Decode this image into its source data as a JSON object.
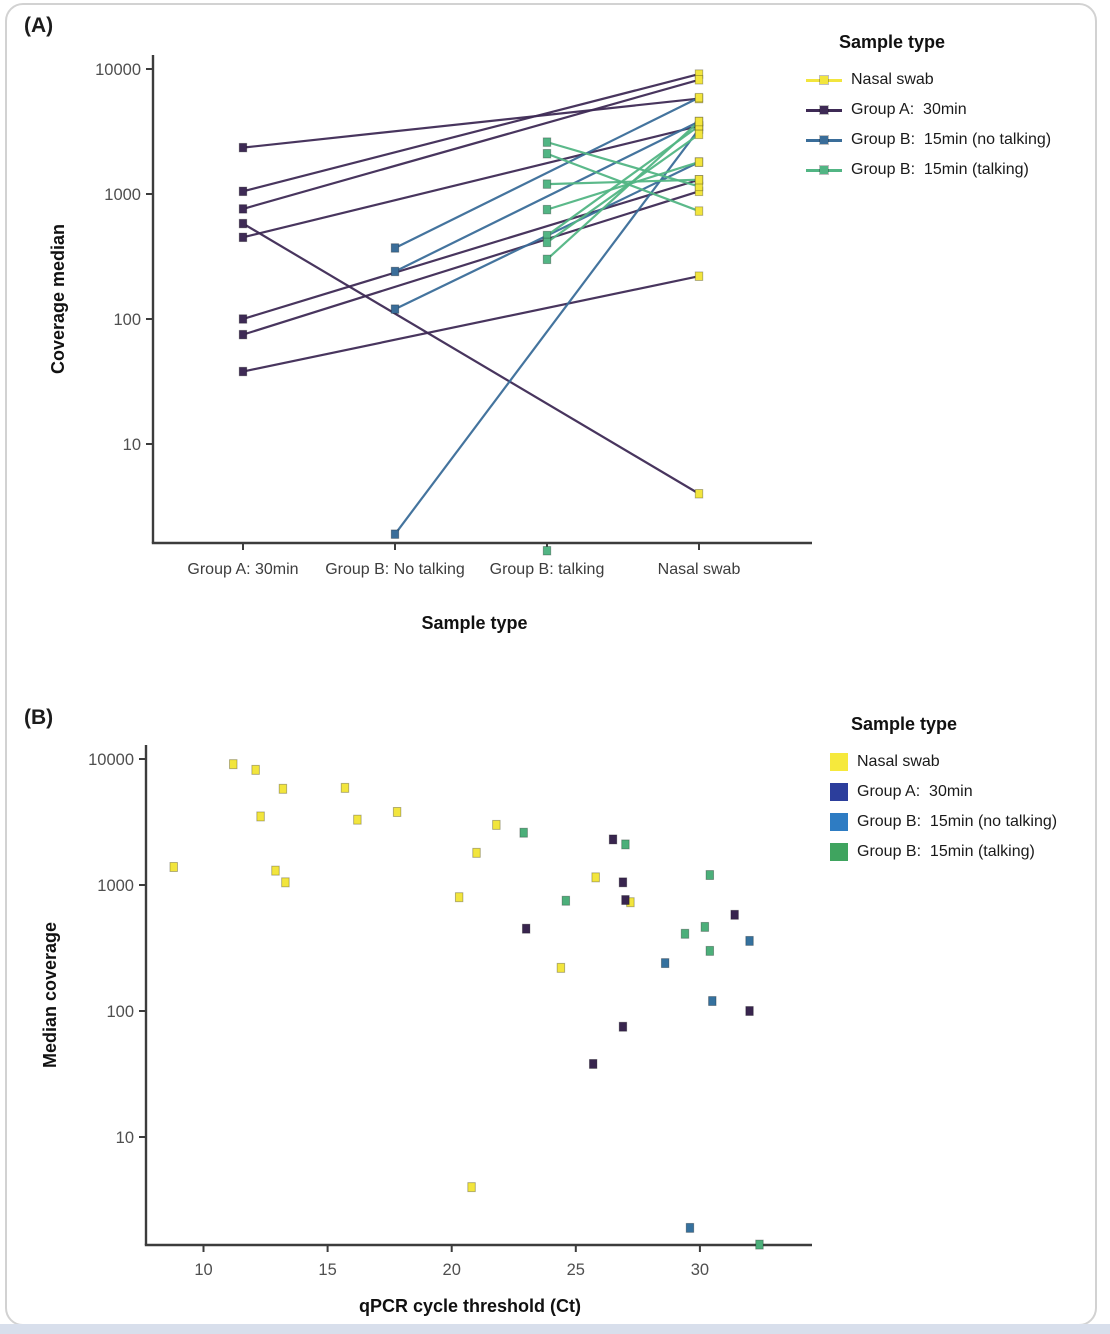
{
  "panelA": {
    "label": "(A)",
    "xlabel": "Sample type",
    "ylabel": "Coverage median",
    "legend_title": "Sample type",
    "legend": [
      {
        "label": "Nasal swab",
        "color": "#f2e53d"
      },
      {
        "label": "Group A:  30min",
        "color": "#3e2a55"
      },
      {
        "label": "Group B:  15min (no talking)",
        "color": "#3a6d99"
      },
      {
        "label": "Group B:  15min (talking)",
        "color": "#52b584"
      }
    ]
  },
  "panelB": {
    "label": "(B)",
    "xlabel": "qPCR cycle threshold (Ct)",
    "ylabel": "Median coverage",
    "legend_title": "Sample type",
    "legend": [
      {
        "label": "Nasal swab",
        "color": "#f6e93c"
      },
      {
        "label": "Group A:  30min",
        "color": "#2c3e9c"
      },
      {
        "label": "Group B:  15min (no talking)",
        "color": "#2e7cc3"
      },
      {
        "label": "Group B:  15min (talking)",
        "color": "#3fa45f"
      }
    ]
  },
  "chart_data": [
    {
      "id": "panelA",
      "type": "line",
      "title": "(A) slope chart: coverage median per sample, mask sample paired to nasal swab",
      "xlabel": "Sample type",
      "ylabel": "Coverage median",
      "x_categories": [
        "Group A: 30min",
        "Group B: No talking",
        "Group B: talking",
        "Nasal swab"
      ],
      "y_scale": "log10",
      "y_ticks": [
        10,
        100,
        1000,
        10000
      ],
      "y_range": [
        1.2,
        13000
      ],
      "grid": false,
      "legend_position": "right",
      "nasal_color": "#f2e53d",
      "series": [
        {
          "name": "Group A: 30min",
          "color": "#3e2a55",
          "category_index": 0,
          "pairs_mask_to_nasal": [
            [
              2350,
              5800
            ],
            [
              1050,
              9100
            ],
            [
              760,
              8200
            ],
            [
              580,
              4
            ],
            [
              450,
              3500
            ],
            [
              100,
              1300
            ],
            [
              75,
              1050
            ],
            [
              38,
              220
            ]
          ]
        },
        {
          "name": "Group B: 15min (no talking)",
          "color": "#3a6d99",
          "category_index": 1,
          "pairs_mask_to_nasal": [
            [
              370,
              5900
            ],
            [
              240,
              3800
            ],
            [
              120,
              1800
            ],
            [
              1.9,
              3300
            ]
          ]
        },
        {
          "name": "Group B: 15min (talking)",
          "color": "#52b584",
          "category_index": 2,
          "pairs_mask_to_nasal": [
            [
              2600,
              1150
            ],
            [
              2100,
              730
            ],
            [
              1200,
              1300
            ],
            [
              750,
              1800
            ],
            [
              465,
              3500
            ],
            [
              410,
              3000
            ],
            [
              300,
              3800
            ],
            [
              1.4,
              null
            ]
          ]
        }
      ]
    },
    {
      "id": "panelB",
      "type": "scatter",
      "title": "(B) median coverage vs qPCR cycle threshold",
      "xlabel": "qPCR cycle threshold (Ct)",
      "ylabel": "Median coverage",
      "x_ticks": [
        10,
        15,
        20,
        25,
        30
      ],
      "x_range": [
        7.7,
        34.5
      ],
      "y_scale": "log10",
      "y_ticks": [
        10,
        100,
        1000,
        10000
      ],
      "y_range": [
        1.2,
        13000
      ],
      "grid": false,
      "legend_position": "right",
      "series": [
        {
          "name": "Nasal swab",
          "color": "#f2e53d",
          "points": [
            [
              8.8,
              1390
            ],
            [
              11.2,
              9100
            ],
            [
              12.1,
              8200
            ],
            [
              12.3,
              3500
            ],
            [
              12.9,
              1300
            ],
            [
              13.2,
              5800
            ],
            [
              13.3,
              1050
            ],
            [
              15.7,
              5900
            ],
            [
              16.2,
              3300
            ],
            [
              17.8,
              3800
            ],
            [
              20.3,
              800
            ],
            [
              20.8,
              4
            ],
            [
              21.0,
              1800
            ],
            [
              21.8,
              3000
            ],
            [
              24.4,
              220
            ],
            [
              25.8,
              1150
            ],
            [
              27.2,
              730
            ]
          ]
        },
        {
          "name": "Group A: 30min",
          "color": "#38254e",
          "points": [
            [
              23.0,
              450
            ],
            [
              25.7,
              38
            ],
            [
              26.5,
              2300
            ],
            [
              26.9,
              1050
            ],
            [
              27.0,
              760
            ],
            [
              26.9,
              75
            ],
            [
              31.4,
              580
            ],
            [
              32.0,
              100
            ]
          ]
        },
        {
          "name": "Group B: 15min (no talking)",
          "color": "#35719e",
          "points": [
            [
              28.6,
              240
            ],
            [
              29.6,
              1.9
            ],
            [
              30.5,
              120
            ],
            [
              32.0,
              360
            ]
          ]
        },
        {
          "name": "Group B: 15min (talking)",
          "color": "#4caf7a",
          "points": [
            [
              22.9,
              2600
            ],
            [
              24.6,
              750
            ],
            [
              27.0,
              2100
            ],
            [
              29.4,
              410
            ],
            [
              30.2,
              465
            ],
            [
              30.4,
              1200
            ],
            [
              30.4,
              300
            ],
            [
              32.4,
              1.4
            ]
          ]
        }
      ]
    }
  ]
}
